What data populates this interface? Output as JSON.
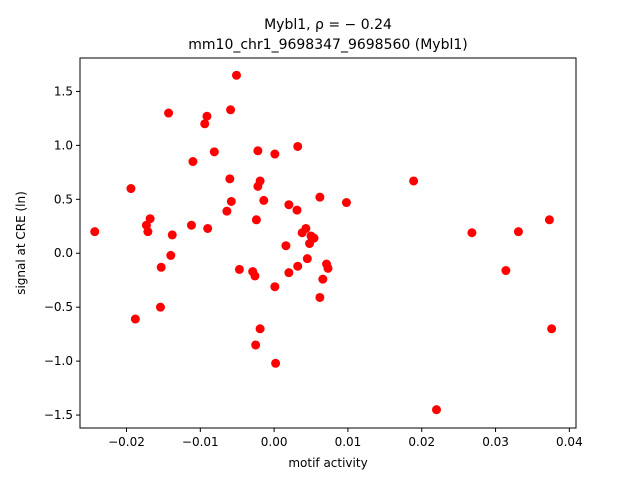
{
  "chart_data": {
    "type": "scatter",
    "title_line1": "Mybl1, ρ = − 0.24",
    "title_line2": "mm10_chr1_9698347_9698560 (Mybl1)",
    "xlabel": "motif activity",
    "ylabel": "signal at CRE (ln)",
    "xlim": [
      -0.0263,
      0.0409
    ],
    "ylim": [
      -1.62,
      1.81
    ],
    "x_ticks": [
      -0.02,
      -0.01,
      0.0,
      0.01,
      0.02,
      0.03,
      0.04
    ],
    "x_tick_labels": [
      "−0.02",
      "−0.01",
      "0.00",
      "0.01",
      "0.02",
      "0.03",
      "0.04"
    ],
    "y_ticks": [
      -1.5,
      -1.0,
      -0.5,
      0.0,
      0.5,
      1.0,
      1.5
    ],
    "y_tick_labels": [
      "−1.5",
      "−1.0",
      "−0.5",
      "0.0",
      "0.5",
      "1.0",
      "1.5"
    ],
    "marker_color": "#ff0000",
    "grid": false,
    "points": [
      {
        "x": -0.0243,
        "y": 0.2
      },
      {
        "x": -0.0194,
        "y": 0.6
      },
      {
        "x": -0.0188,
        "y": -0.61
      },
      {
        "x": -0.0173,
        "y": 0.26
      },
      {
        "x": -0.0171,
        "y": 0.2
      },
      {
        "x": -0.0168,
        "y": 0.32
      },
      {
        "x": -0.0154,
        "y": -0.5
      },
      {
        "x": -0.0153,
        "y": -0.13
      },
      {
        "x": -0.0143,
        "y": 1.3
      },
      {
        "x": -0.014,
        "y": -0.02
      },
      {
        "x": -0.0138,
        "y": 0.17
      },
      {
        "x": -0.0112,
        "y": 0.26
      },
      {
        "x": -0.011,
        "y": 0.85
      },
      {
        "x": -0.0094,
        "y": 1.2
      },
      {
        "x": -0.0091,
        "y": 1.27
      },
      {
        "x": -0.009,
        "y": 0.23
      },
      {
        "x": -0.0081,
        "y": 0.94
      },
      {
        "x": -0.0064,
        "y": 0.39
      },
      {
        "x": -0.006,
        "y": 0.69
      },
      {
        "x": -0.0059,
        "y": 1.33
      },
      {
        "x": -0.0058,
        "y": 0.48
      },
      {
        "x": -0.0051,
        "y": 1.65
      },
      {
        "x": -0.0047,
        "y": -0.15
      },
      {
        "x": -0.0029,
        "y": -0.17
      },
      {
        "x": -0.0026,
        "y": -0.21
      },
      {
        "x": -0.0025,
        "y": -0.85
      },
      {
        "x": -0.0024,
        "y": 0.31
      },
      {
        "x": -0.0022,
        "y": 0.62
      },
      {
        "x": -0.0022,
        "y": 0.95
      },
      {
        "x": -0.0019,
        "y": 0.67
      },
      {
        "x": -0.0019,
        "y": -0.7
      },
      {
        "x": -0.0014,
        "y": 0.49
      },
      {
        "x": 0.0001,
        "y": 0.92
      },
      {
        "x": 0.0001,
        "y": -0.31
      },
      {
        "x": 0.0002,
        "y": -1.02
      },
      {
        "x": 0.0016,
        "y": 0.07
      },
      {
        "x": 0.002,
        "y": 0.45
      },
      {
        "x": 0.002,
        "y": -0.18
      },
      {
        "x": 0.0031,
        "y": 0.4
      },
      {
        "x": 0.0032,
        "y": 0.99
      },
      {
        "x": 0.0032,
        "y": -0.12
      },
      {
        "x": 0.0038,
        "y": 0.19
      },
      {
        "x": 0.0043,
        "y": 0.23
      },
      {
        "x": 0.0045,
        "y": -0.05
      },
      {
        "x": 0.0048,
        "y": 0.09
      },
      {
        "x": 0.005,
        "y": 0.16
      },
      {
        "x": 0.0054,
        "y": 0.14
      },
      {
        "x": 0.0062,
        "y": -0.41
      },
      {
        "x": 0.0062,
        "y": 0.52
      },
      {
        "x": 0.0066,
        "y": -0.24
      },
      {
        "x": 0.0071,
        "y": -0.1
      },
      {
        "x": 0.0073,
        "y": -0.14
      },
      {
        "x": 0.0098,
        "y": 0.47
      },
      {
        "x": 0.0189,
        "y": 0.67
      },
      {
        "x": 0.022,
        "y": -1.45
      },
      {
        "x": 0.0268,
        "y": 0.19
      },
      {
        "x": 0.0314,
        "y": -0.16
      },
      {
        "x": 0.0331,
        "y": 0.2
      },
      {
        "x": 0.0373,
        "y": 0.31
      },
      {
        "x": 0.0376,
        "y": -0.7
      }
    ]
  }
}
